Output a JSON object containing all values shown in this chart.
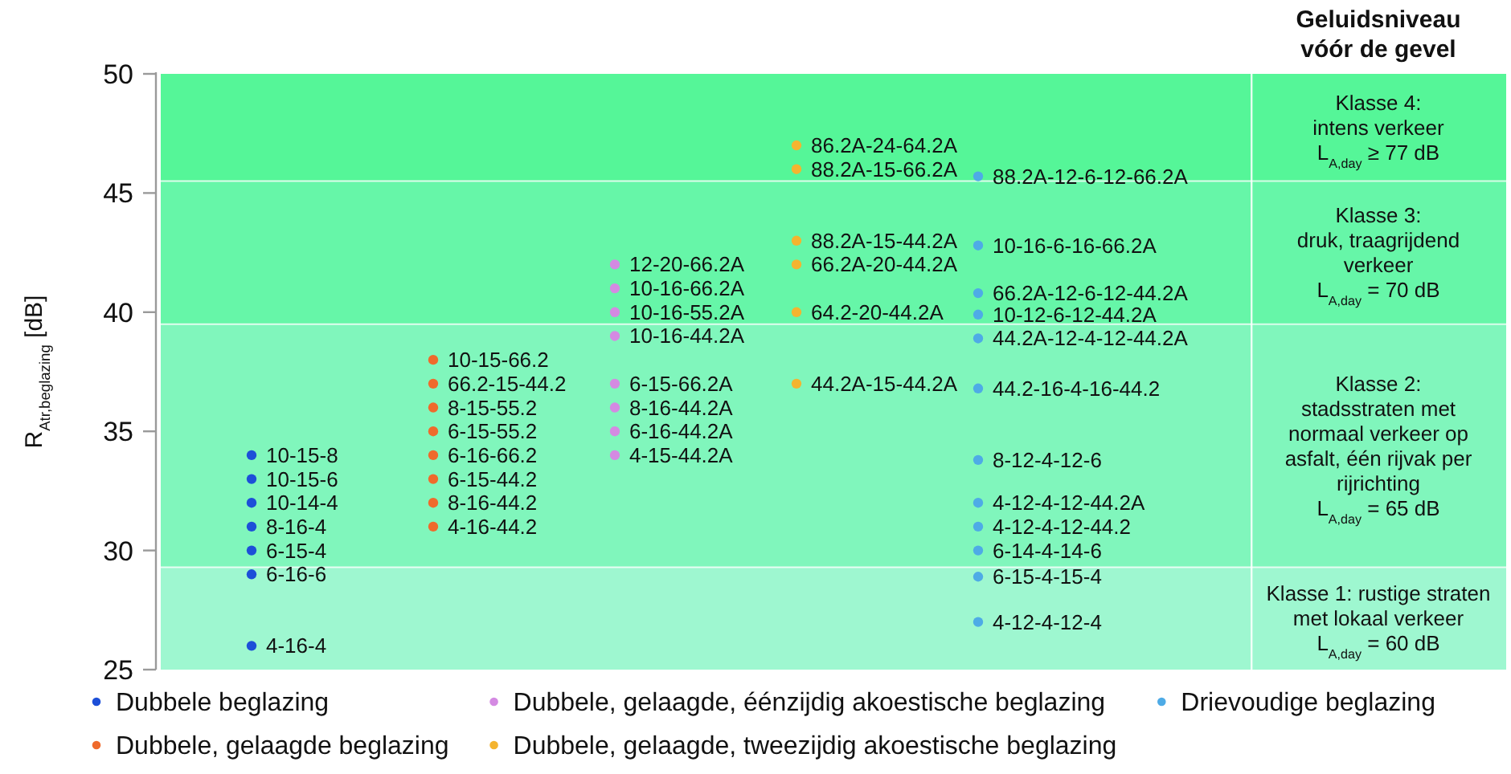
{
  "chart_data": {
    "type": "scatter",
    "ylabel": "R$_{Atr,beglazing}$ [dB]",
    "annotations": [
      "Geluidsniveau\nvóór de gevel"
    ],
    "categories": [
      null,
      null,
      null,
      null,
      null,
      null
    ],
    "ylim": [
      25,
      50
    ],
    "yticks": [
      25,
      30,
      35,
      40,
      45,
      50
    ],
    "tick_labels": "y",
    "marker": "circle",
    "legend": "bottom",
    "bands": [
      {
        "axis": "y",
        "from": 45.5,
        "to": 50,
        "color": "#55f698",
        "label": "Klasse 4:\nintens verkeer\nL$_{A,day}$ ≥ 77 dB"
      },
      {
        "axis": "y",
        "from": 39.5,
        "to": 45.5,
        "color": "#66f6a8",
        "label": "Klasse 3:\ndruk, traagrijdend\nverkeer\nL$_{A,day}$ = 70 dB"
      },
      {
        "axis": "y",
        "from": 29.3,
        "to": 39.5,
        "color": "#80f6bc",
        "label": "Klasse 2:\nstadsstraten met\nnormaal verkeer op\nasfalt, één rijvak per\nrijrichting\nL$_{A,day}$ = 65 dB"
      },
      {
        "axis": "y",
        "from": 25,
        "to": 29.3,
        "color": "#9ef7d0",
        "label": "Klasse 1: rustige straten\nmet lokaal verkeer\nL$_{A,day}$ = 60 dB"
      }
    ],
    "series": [
      {
        "name": "Dubbele beglazing",
        "color": "#1d4fd8",
        "values": [
          34,
          null,
          null,
          null,
          null,
          null
        ],
        "value_labels": [
          "10-15-8",
          null,
          null,
          null,
          null,
          null
        ]
      },
      {
        "color": "#1d4fd8",
        "values": [
          33,
          null,
          null,
          null,
          null,
          null
        ],
        "value_labels": [
          "10-15-6",
          null,
          null,
          null,
          null,
          null
        ]
      },
      {
        "color": "#1d4fd8",
        "values": [
          32,
          null,
          null,
          null,
          null,
          null
        ],
        "value_labels": [
          "10-14-4",
          null,
          null,
          null,
          null,
          null
        ]
      },
      {
        "color": "#1d4fd8",
        "values": [
          31,
          null,
          null,
          null,
          null,
          null
        ],
        "value_labels": [
          "8-16-4",
          null,
          null,
          null,
          null,
          null
        ]
      },
      {
        "color": "#1d4fd8",
        "values": [
          30,
          null,
          null,
          null,
          null,
          null
        ],
        "value_labels": [
          "6-15-4",
          null,
          null,
          null,
          null,
          null
        ]
      },
      {
        "color": "#1d4fd8",
        "values": [
          29,
          null,
          null,
          null,
          null,
          null
        ],
        "value_labels": [
          "6-16-6",
          null,
          null,
          null,
          null,
          null
        ]
      },
      {
        "color": "#1d4fd8",
        "values": [
          26,
          null,
          null,
          null,
          null,
          null
        ],
        "value_labels": [
          "4-16-4",
          null,
          null,
          null,
          null,
          null
        ]
      },
      {
        "name": "Dubbele, gelaagde beglazing",
        "color": "#ef6a2c",
        "values": [
          null,
          38,
          null,
          null,
          null,
          null
        ],
        "value_labels": [
          null,
          "10-15-66.2",
          null,
          null,
          null,
          null
        ]
      },
      {
        "color": "#ef6a2c",
        "values": [
          null,
          37,
          null,
          null,
          null,
          null
        ],
        "value_labels": [
          null,
          "66.2-15-44.2",
          null,
          null,
          null,
          null
        ]
      },
      {
        "color": "#ef6a2c",
        "values": [
          null,
          36,
          null,
          null,
          null,
          null
        ],
        "value_labels": [
          null,
          "8-15-55.2",
          null,
          null,
          null,
          null
        ]
      },
      {
        "color": "#ef6a2c",
        "values": [
          null,
          35,
          null,
          null,
          null,
          null
        ],
        "value_labels": [
          null,
          "6-15-55.2",
          null,
          null,
          null,
          null
        ]
      },
      {
        "color": "#ef6a2c",
        "values": [
          null,
          34,
          null,
          null,
          null,
          null
        ],
        "value_labels": [
          null,
          "6-16-66.2",
          null,
          null,
          null,
          null
        ]
      },
      {
        "color": "#ef6a2c",
        "values": [
          null,
          33,
          null,
          null,
          null,
          null
        ],
        "value_labels": [
          null,
          "6-15-44.2",
          null,
          null,
          null,
          null
        ]
      },
      {
        "color": "#ef6a2c",
        "values": [
          null,
          32,
          null,
          null,
          null,
          null
        ],
        "value_labels": [
          null,
          "8-16-44.2",
          null,
          null,
          null,
          null
        ]
      },
      {
        "color": "#ef6a2c",
        "values": [
          null,
          31,
          null,
          null,
          null,
          null
        ],
        "value_labels": [
          null,
          "4-16-44.2",
          null,
          null,
          null,
          null
        ]
      },
      {
        "name": "Dubbele, gelaagde, éénzijdig akoestische beglazing",
        "color": "#d48ae2",
        "values": [
          null,
          null,
          42,
          null,
          null,
          null
        ],
        "value_labels": [
          null,
          null,
          "12-20-66.2A",
          null,
          null,
          null
        ]
      },
      {
        "color": "#d48ae2",
        "values": [
          null,
          null,
          41,
          null,
          null,
          null
        ],
        "value_labels": [
          null,
          null,
          "10-16-66.2A",
          null,
          null,
          null
        ]
      },
      {
        "color": "#d48ae2",
        "values": [
          null,
          null,
          40,
          null,
          null,
          null
        ],
        "value_labels": [
          null,
          null,
          "10-16-55.2A",
          null,
          null,
          null
        ]
      },
      {
        "color": "#d48ae2",
        "values": [
          null,
          null,
          39,
          null,
          null,
          null
        ],
        "value_labels": [
          null,
          null,
          "10-16-44.2A",
          null,
          null,
          null
        ]
      },
      {
        "color": "#d48ae2",
        "values": [
          null,
          null,
          37,
          null,
          null,
          null
        ],
        "value_labels": [
          null,
          null,
          "6-15-66.2A",
          null,
          null,
          null
        ]
      },
      {
        "color": "#d48ae2",
        "values": [
          null,
          null,
          36,
          null,
          null,
          null
        ],
        "value_labels": [
          null,
          null,
          "8-16-44.2A",
          null,
          null,
          null
        ]
      },
      {
        "color": "#d48ae2",
        "values": [
          null,
          null,
          35,
          null,
          null,
          null
        ],
        "value_labels": [
          null,
          null,
          "6-16-44.2A",
          null,
          null,
          null
        ]
      },
      {
        "color": "#d48ae2",
        "values": [
          null,
          null,
          34,
          null,
          null,
          null
        ],
        "value_labels": [
          null,
          null,
          "4-15-44.2A",
          null,
          null,
          null
        ]
      },
      {
        "name": "Dubbele, gelaagde, tweezijdig akoestische beglazing",
        "color": "#f4b42f",
        "values": [
          null,
          null,
          null,
          47,
          null,
          null
        ],
        "value_labels": [
          null,
          null,
          null,
          "86.2A-24-64.2A",
          null,
          null
        ]
      },
      {
        "color": "#f4b42f",
        "values": [
          null,
          null,
          null,
          46,
          null,
          null
        ],
        "value_labels": [
          null,
          null,
          null,
          "88.2A-15-66.2A",
          null,
          null
        ]
      },
      {
        "color": "#f4b42f",
        "values": [
          null,
          null,
          null,
          43,
          null,
          null
        ],
        "value_labels": [
          null,
          null,
          null,
          "88.2A-15-44.2A",
          null,
          null
        ]
      },
      {
        "color": "#f4b42f",
        "values": [
          null,
          null,
          null,
          42,
          null,
          null
        ],
        "value_labels": [
          null,
          null,
          null,
          "66.2A-20-44.2A",
          null,
          null
        ]
      },
      {
        "color": "#f4b42f",
        "values": [
          null,
          null,
          null,
          40,
          null,
          null
        ],
        "value_labels": [
          null,
          null,
          null,
          "64.2-20-44.2A",
          null,
          null
        ]
      },
      {
        "color": "#f4b42f",
        "values": [
          null,
          null,
          null,
          37,
          null,
          null
        ],
        "value_labels": [
          null,
          null,
          null,
          "44.2A-15-44.2A",
          null,
          null
        ]
      },
      {
        "name": "Drievoudige beglazing",
        "color": "#4eabe6",
        "values": [
          null,
          null,
          null,
          null,
          45.7,
          null
        ],
        "value_labels": [
          null,
          null,
          null,
          null,
          "88.2A-12-6-12-66.2A",
          null
        ]
      },
      {
        "color": "#4eabe6",
        "values": [
          null,
          null,
          null,
          null,
          42.8,
          null
        ],
        "value_labels": [
          null,
          null,
          null,
          null,
          "10-16-6-16-66.2A",
          null
        ]
      },
      {
        "color": "#4eabe6",
        "values": [
          null,
          null,
          null,
          null,
          40.8,
          null
        ],
        "value_labels": [
          null,
          null,
          null,
          null,
          "66.2A-12-6-12-44.2A",
          null
        ]
      },
      {
        "color": "#4eabe6",
        "values": [
          null,
          null,
          null,
          null,
          39.9,
          null
        ],
        "value_labels": [
          null,
          null,
          null,
          null,
          "10-12-6-12-44.2A",
          null
        ]
      },
      {
        "color": "#4eabe6",
        "values": [
          null,
          null,
          null,
          null,
          38.9,
          null
        ],
        "value_labels": [
          null,
          null,
          null,
          null,
          "44.2A-12-4-12-44.2A",
          null
        ]
      },
      {
        "color": "#4eabe6",
        "values": [
          null,
          null,
          null,
          null,
          36.8,
          null
        ],
        "value_labels": [
          null,
          null,
          null,
          null,
          "44.2-16-4-16-44.2",
          null
        ]
      },
      {
        "color": "#4eabe6",
        "values": [
          null,
          null,
          null,
          null,
          33.8,
          null
        ],
        "value_labels": [
          null,
          null,
          null,
          null,
          "8-12-4-12-6",
          null
        ]
      },
      {
        "color": "#4eabe6",
        "values": [
          null,
          null,
          null,
          null,
          32,
          null
        ],
        "value_labels": [
          null,
          null,
          null,
          null,
          "4-12-4-12-44.2A",
          null
        ]
      },
      {
        "color": "#4eabe6",
        "values": [
          null,
          null,
          null,
          null,
          31,
          null
        ],
        "value_labels": [
          null,
          null,
          null,
          null,
          "4-12-4-12-44.2",
          null
        ]
      },
      {
        "color": "#4eabe6",
        "values": [
          null,
          null,
          null,
          null,
          30,
          null
        ],
        "value_labels": [
          null,
          null,
          null,
          null,
          "6-14-4-14-6",
          null
        ]
      },
      {
        "color": "#4eabe6",
        "values": [
          null,
          null,
          null,
          null,
          28.9,
          null
        ],
        "value_labels": [
          null,
          null,
          null,
          null,
          "6-15-4-15-4",
          null
        ]
      },
      {
        "color": "#4eabe6",
        "values": [
          null,
          null,
          null,
          null,
          27,
          null
        ],
        "value_labels": [
          null,
          null,
          null,
          null,
          "4-12-4-12-4",
          null
        ]
      }
    ]
  }
}
